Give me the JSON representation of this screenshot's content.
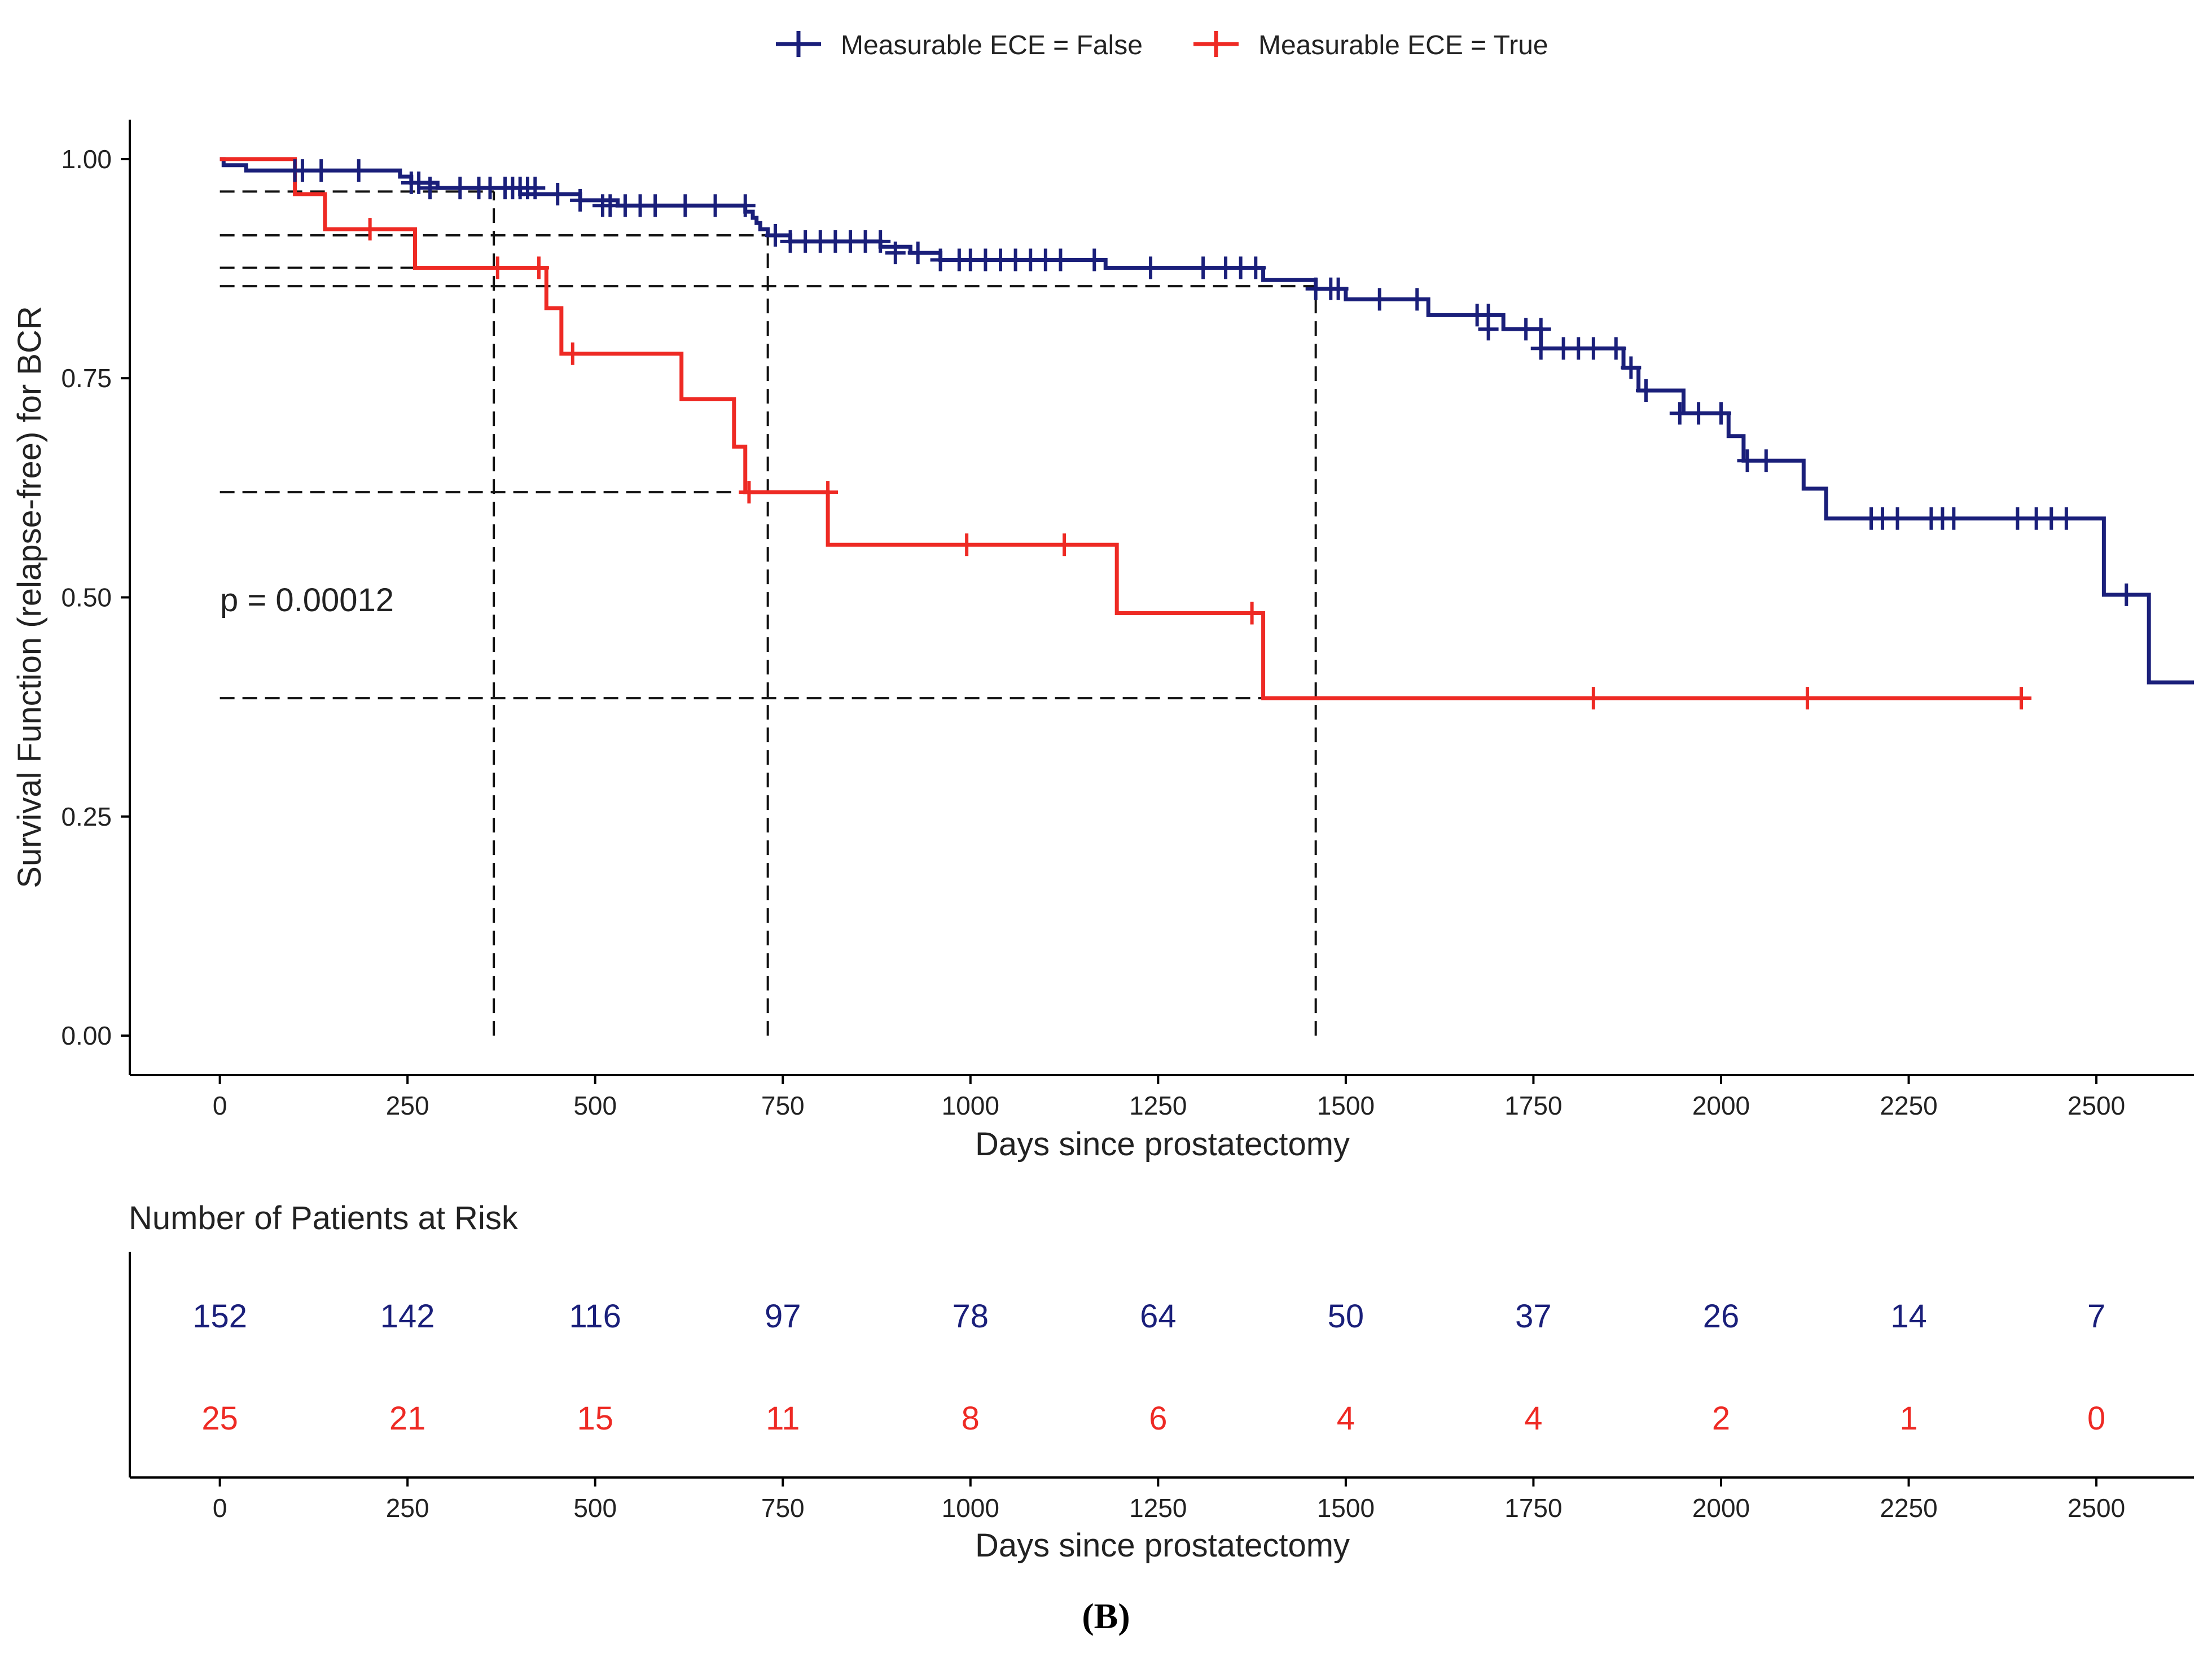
{
  "chart_data": {
    "type": "line",
    "subtype": "kaplan-meier",
    "title": "",
    "xlabel": "Days since prostatectomy",
    "ylabel": "Survival Function (relapse-free) for BCR",
    "xlim": [
      -120,
      2630
    ],
    "ylim": [
      -0.045,
      1.045
    ],
    "x_ticks": [
      0,
      250,
      500,
      750,
      1000,
      1250,
      1500,
      1750,
      2000,
      2250,
      2500
    ],
    "y_ticks": [
      0,
      0.25,
      0.5,
      0.75,
      1.0
    ],
    "y_tick_labels": [
      "0.00",
      "0.25",
      "0.50",
      "0.75",
      "1.00"
    ],
    "legend": {
      "position": "top"
    },
    "annotation": "p = 0.00012",
    "series": [
      {
        "name": "Measurable ECE = False",
        "color": "#1a1f7a",
        "steps": [
          [
            0,
            1.0
          ],
          [
            5,
            0.993
          ],
          [
            35,
            0.987
          ],
          [
            240,
            0.98
          ],
          [
            255,
            0.973
          ],
          [
            290,
            0.967
          ],
          [
            400,
            0.96
          ],
          [
            480,
            0.953
          ],
          [
            530,
            0.947
          ],
          [
            700,
            0.94
          ],
          [
            710,
            0.933
          ],
          [
            715,
            0.927
          ],
          [
            720,
            0.92
          ],
          [
            730,
            0.913
          ],
          [
            760,
            0.906
          ],
          [
            880,
            0.9
          ],
          [
            920,
            0.893
          ],
          [
            960,
            0.885
          ],
          [
            1180,
            0.876
          ],
          [
            1390,
            0.862
          ],
          [
            1460,
            0.852
          ],
          [
            1500,
            0.84
          ],
          [
            1610,
            0.822
          ],
          [
            1710,
            0.806
          ],
          [
            1760,
            0.784
          ],
          [
            1870,
            0.762
          ],
          [
            1890,
            0.736
          ],
          [
            1950,
            0.71
          ],
          [
            2010,
            0.684
          ],
          [
            2030,
            0.656
          ],
          [
            2110,
            0.624
          ],
          [
            2140,
            0.59
          ],
          [
            2510,
            0.503
          ],
          [
            2570,
            0.403
          ],
          [
            2630,
            0.403
          ]
        ],
        "censored": [
          [
            100,
            0.987
          ],
          [
            110,
            0.987
          ],
          [
            135,
            0.987
          ],
          [
            185,
            0.987
          ],
          [
            255,
            0.973
          ],
          [
            265,
            0.973
          ],
          [
            280,
            0.967
          ],
          [
            320,
            0.967
          ],
          [
            345,
            0.967
          ],
          [
            360,
            0.967
          ],
          [
            380,
            0.967
          ],
          [
            390,
            0.967
          ],
          [
            400,
            0.967
          ],
          [
            410,
            0.967
          ],
          [
            420,
            0.967
          ],
          [
            450,
            0.96
          ],
          [
            480,
            0.953
          ],
          [
            510,
            0.947
          ],
          [
            520,
            0.947
          ],
          [
            540,
            0.947
          ],
          [
            560,
            0.947
          ],
          [
            580,
            0.947
          ],
          [
            620,
            0.947
          ],
          [
            660,
            0.947
          ],
          [
            700,
            0.947
          ],
          [
            740,
            0.913
          ],
          [
            760,
            0.906
          ],
          [
            780,
            0.906
          ],
          [
            800,
            0.906
          ],
          [
            820,
            0.906
          ],
          [
            840,
            0.906
          ],
          [
            860,
            0.906
          ],
          [
            880,
            0.906
          ],
          [
            900,
            0.893
          ],
          [
            930,
            0.893
          ],
          [
            960,
            0.885
          ],
          [
            985,
            0.885
          ],
          [
            1000,
            0.885
          ],
          [
            1020,
            0.885
          ],
          [
            1040,
            0.885
          ],
          [
            1060,
            0.885
          ],
          [
            1080,
            0.885
          ],
          [
            1100,
            0.885
          ],
          [
            1120,
            0.885
          ],
          [
            1165,
            0.885
          ],
          [
            1240,
            0.876
          ],
          [
            1310,
            0.876
          ],
          [
            1340,
            0.876
          ],
          [
            1360,
            0.876
          ],
          [
            1380,
            0.876
          ],
          [
            1460,
            0.852
          ],
          [
            1480,
            0.852
          ],
          [
            1490,
            0.852
          ],
          [
            1545,
            0.84
          ],
          [
            1595,
            0.84
          ],
          [
            1675,
            0.822
          ],
          [
            1690,
            0.822
          ],
          [
            1690,
            0.806
          ],
          [
            1740,
            0.806
          ],
          [
            1760,
            0.806
          ],
          [
            1760,
            0.784
          ],
          [
            1790,
            0.784
          ],
          [
            1810,
            0.784
          ],
          [
            1830,
            0.784
          ],
          [
            1860,
            0.784
          ],
          [
            1880,
            0.762
          ],
          [
            1900,
            0.736
          ],
          [
            1945,
            0.71
          ],
          [
            1970,
            0.71
          ],
          [
            2000,
            0.71
          ],
          [
            2035,
            0.656
          ],
          [
            2060,
            0.656
          ],
          [
            2200,
            0.59
          ],
          [
            2215,
            0.59
          ],
          [
            2235,
            0.59
          ],
          [
            2280,
            0.59
          ],
          [
            2295,
            0.59
          ],
          [
            2310,
            0.59
          ],
          [
            2395,
            0.59
          ],
          [
            2420,
            0.59
          ],
          [
            2440,
            0.59
          ],
          [
            2460,
            0.59
          ],
          [
            2540,
            0.503
          ]
        ]
      },
      {
        "name": "Measurable ECE = True",
        "color": "#ee2a24",
        "steps": [
          [
            0,
            1.0
          ],
          [
            100,
            0.96
          ],
          [
            140,
            0.92
          ],
          [
            260,
            0.876
          ],
          [
            435,
            0.83
          ],
          [
            455,
            0.778
          ],
          [
            615,
            0.726
          ],
          [
            685,
            0.672
          ],
          [
            700,
            0.62
          ],
          [
            810,
            0.56
          ],
          [
            1195,
            0.482
          ],
          [
            1390,
            0.385
          ],
          [
            2400,
            0.385
          ]
        ],
        "censored": [
          [
            200,
            0.92
          ],
          [
            370,
            0.876
          ],
          [
            425,
            0.876
          ],
          [
            470,
            0.778
          ],
          [
            705,
            0.62
          ],
          [
            810,
            0.62
          ],
          [
            995,
            0.56
          ],
          [
            1125,
            0.56
          ],
          [
            1375,
            0.482
          ],
          [
            1830,
            0.385
          ],
          [
            2115,
            0.385
          ],
          [
            2400,
            0.385
          ]
        ]
      }
    ],
    "reference_lines": [
      {
        "x": 365,
        "y_false": 0.963,
        "y_true": 0.876
      },
      {
        "x": 730,
        "y_false": 0.913,
        "y_true": 0.62
      },
      {
        "x": 1460,
        "y_false": 0.855,
        "y_true": 0.385
      }
    ]
  },
  "risk_table": {
    "title": "Number of Patients at Risk",
    "xlabel": "Days since prostatectomy",
    "x_ticks": [
      0,
      250,
      500,
      750,
      1000,
      1250,
      1500,
      1750,
      2000,
      2250,
      2500
    ],
    "rows": [
      {
        "name": "Measurable ECE = False",
        "color": "#1a1f7a",
        "values": [
          152,
          142,
          116,
          97,
          78,
          64,
          50,
          37,
          26,
          14,
          7
        ]
      },
      {
        "name": "Measurable ECE = True",
        "color": "#ee2a24",
        "values": [
          25,
          21,
          15,
          11,
          8,
          6,
          4,
          4,
          2,
          1,
          0
        ]
      }
    ]
  },
  "caption": "(B)"
}
